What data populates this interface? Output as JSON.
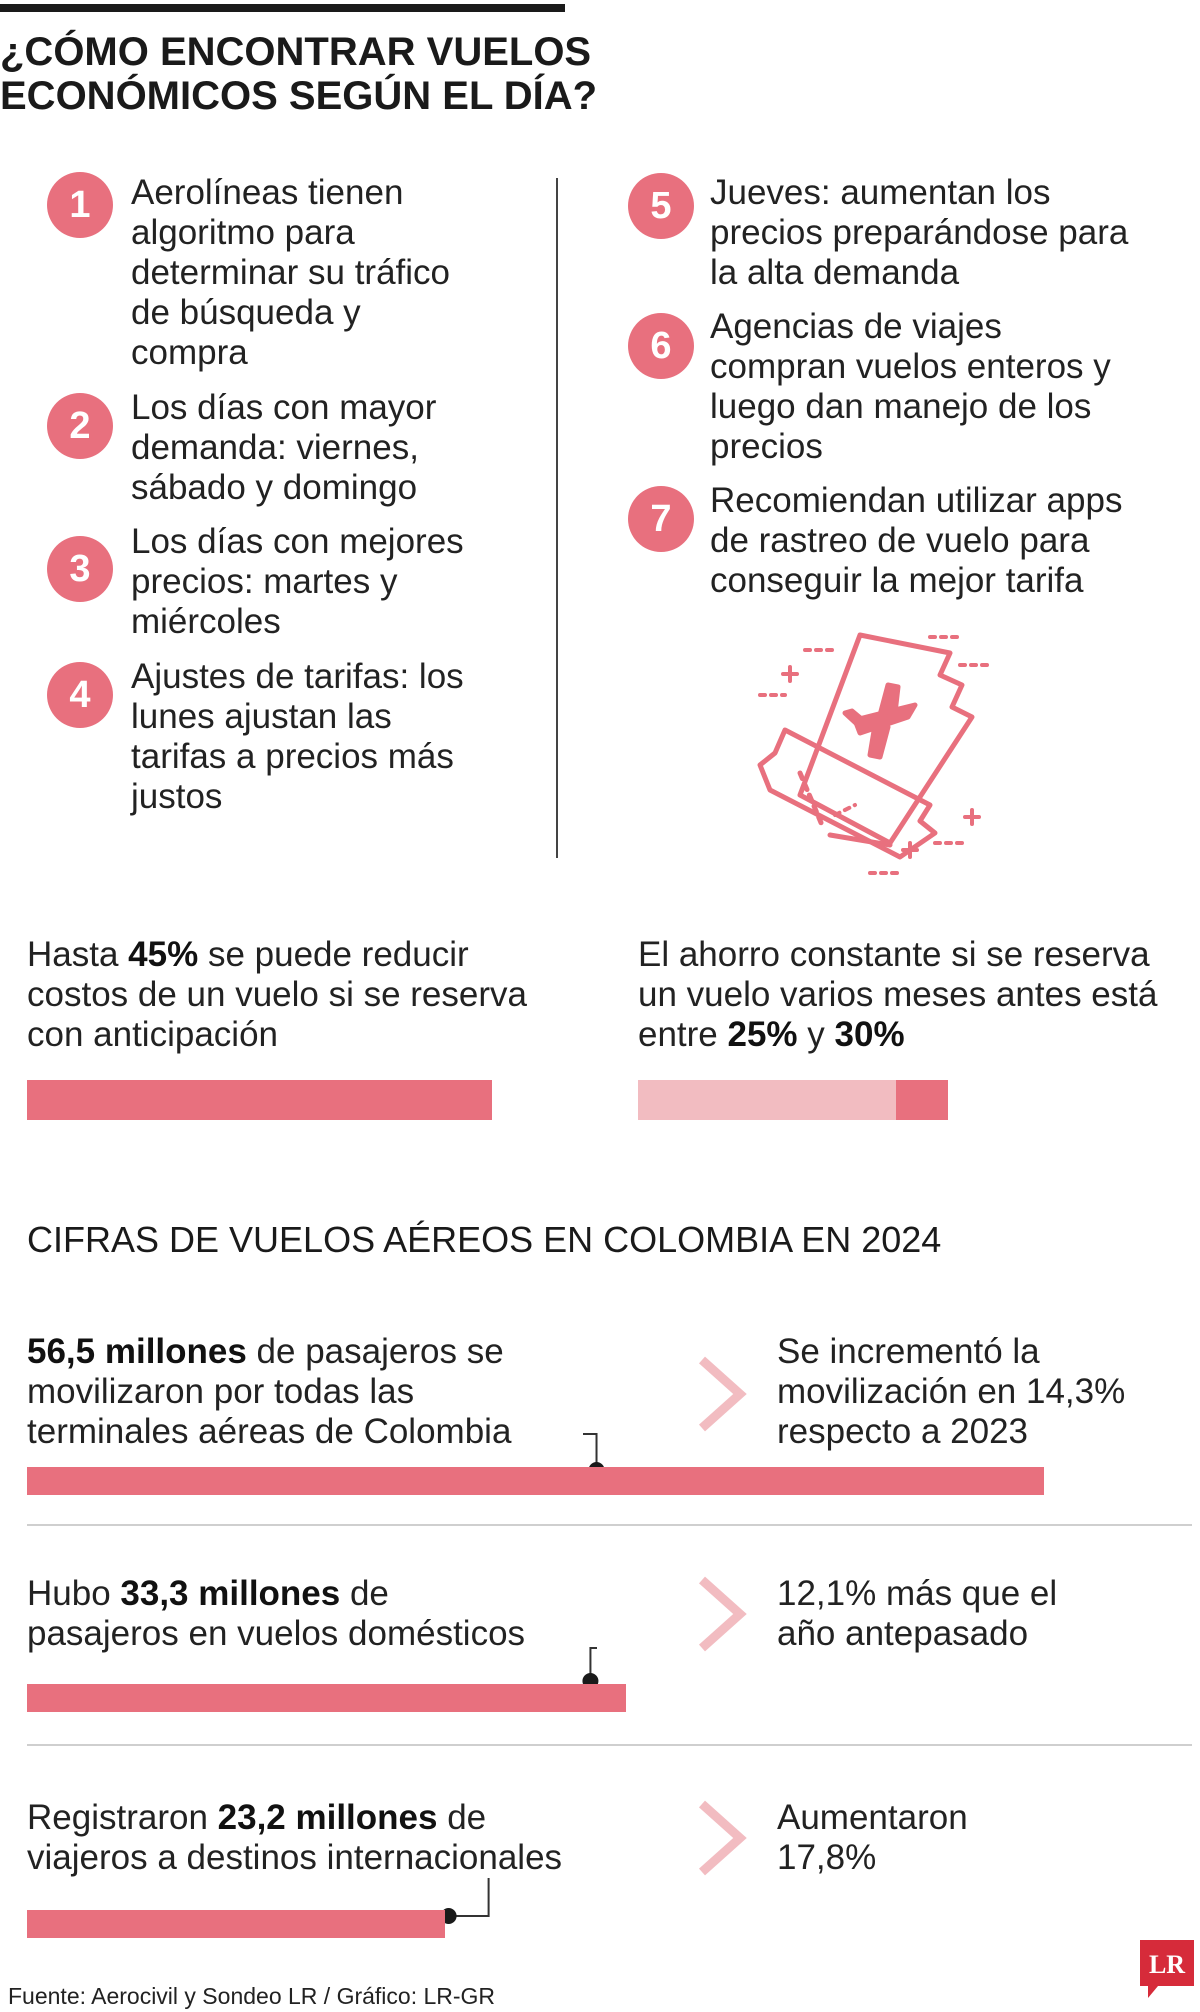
{
  "title": {
    "line1": "¿CÓMO ENCONTRAR VUELOS",
    "line2": "ECONÓMICOS SEGÚN EL DÍA?"
  },
  "tips": [
    {
      "num": "1",
      "lines": [
        "Aerolíneas tienen",
        "algoritmo para",
        "determinar su tráfico",
        "de búsqueda y",
        "compra"
      ]
    },
    {
      "num": "2",
      "lines": [
        "Los días con mayor",
        "demanda: viernes,",
        "sábado y domingo"
      ]
    },
    {
      "num": "3",
      "lines": [
        "Los días con mejores",
        "precios: martes y",
        "miércoles"
      ]
    },
    {
      "num": "4",
      "lines": [
        "Ajustes de tarifas: los",
        "lunes ajustan las",
        "tarifas a precios más",
        "justos"
      ]
    },
    {
      "num": "5",
      "lines": [
        "Jueves: aumentan los",
        "precios preparándose para",
        "la alta demanda"
      ]
    },
    {
      "num": "6",
      "lines": [
        "Agencias de viajes",
        "compran vuelos enteros y",
        "luego dan manejo de los",
        "precios"
      ]
    },
    {
      "num": "7",
      "lines": [
        "Recomiendan utilizar apps",
        "de rastreo de vuelo para",
        "conseguir la mejor tarifa"
      ]
    }
  ],
  "savings": {
    "left": {
      "pre": "Hasta ",
      "bold": "45%",
      "post1": " se puede reducir",
      "line2": "costos de un vuelo si se reserva",
      "line3": "con anticipación",
      "value_pct": 45
    },
    "right": {
      "line1": "El ahorro constante si se reserva",
      "line2": "un vuelo varios meses antes está",
      "pre3": "entre ",
      "bold1": "25%",
      "mid3": " y ",
      "bold2": "30%",
      "low_pct": 25,
      "high_pct": 30
    }
  },
  "section_title": "CIFRAS DE VUELOS AÉREOS EN COLOMBIA EN 2024",
  "figures": [
    {
      "bold": "56,5 millones",
      "post": " de pasajeros se",
      "line2": "movilizaron por todas las",
      "line3": "terminales aéreas de Colombia",
      "side1": "Se incrementó la",
      "side2": "movilización en 14,3%",
      "side3": "respecto a 2023",
      "value": 56.5
    },
    {
      "pre": "Hubo ",
      "bold": "33,3 millones",
      "post": " de",
      "line2": "pasajeros en vuelos domésticos",
      "side1": "12,1% más que el",
      "side2": "año antepasado",
      "value": 33.3
    },
    {
      "pre": "Registraron ",
      "bold": "23,2 millones",
      "post": " de",
      "line2": "viajeros a destinos internacionales",
      "side1": "Aumentaron",
      "side2": "17,8%",
      "value": 23.2
    }
  ],
  "source": "Fuente: Aerocivil y Sondeo LR / Gráfico: LR-GR",
  "logo_text": "LR",
  "colors": {
    "accent": "#e8707e",
    "accent_light": "#f2bcc1",
    "chevron": "#f2bcc1",
    "text": "#1a1a1a"
  },
  "icons": [
    "plane-ticket-icon",
    "chevron-right-icon",
    "lr-logo-icon"
  ]
}
